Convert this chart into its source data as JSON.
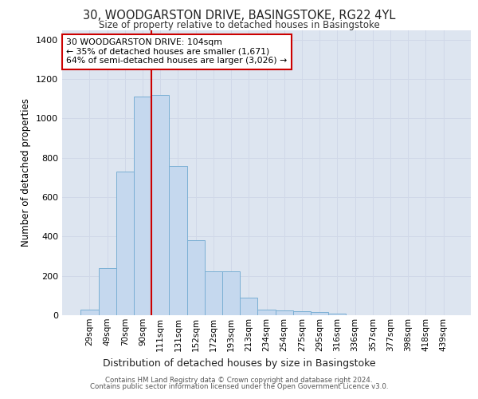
{
  "title_line1": "30, WOODGARSTON DRIVE, BASINGSTOKE, RG22 4YL",
  "title_line2": "Size of property relative to detached houses in Basingstoke",
  "xlabel": "Distribution of detached houses by size in Basingstoke",
  "ylabel": "Number of detached properties",
  "bar_labels": [
    "29sqm",
    "49sqm",
    "70sqm",
    "90sqm",
    "111sqm",
    "131sqm",
    "152sqm",
    "172sqm",
    "193sqm",
    "213sqm",
    "234sqm",
    "254sqm",
    "275sqm",
    "295sqm",
    "316sqm",
    "336sqm",
    "357sqm",
    "377sqm",
    "398sqm",
    "418sqm",
    "439sqm"
  ],
  "bar_values": [
    30,
    240,
    730,
    1110,
    1120,
    760,
    380,
    225,
    225,
    90,
    30,
    25,
    20,
    15,
    10,
    0,
    0,
    0,
    0,
    0,
    0
  ],
  "bar_color": "#c5d8ee",
  "bar_edgecolor": "#7aafd4",
  "grid_color": "#d0d8e8",
  "bg_color": "#dde5f0",
  "ylim": [
    0,
    1450
  ],
  "yticks": [
    0,
    200,
    400,
    600,
    800,
    1000,
    1200,
    1400
  ],
  "red_line_color": "#cc0000",
  "annotation_text": "30 WOODGARSTON DRIVE: 104sqm\n← 35% of detached houses are smaller (1,671)\n64% of semi-detached houses are larger (3,026) →",
  "annotation_box_color": "#ffffff",
  "annotation_border_color": "#cc0000",
  "footer_line1": "Contains HM Land Registry data © Crown copyright and database right 2024.",
  "footer_line2": "Contains public sector information licensed under the Open Government Licence v3.0."
}
